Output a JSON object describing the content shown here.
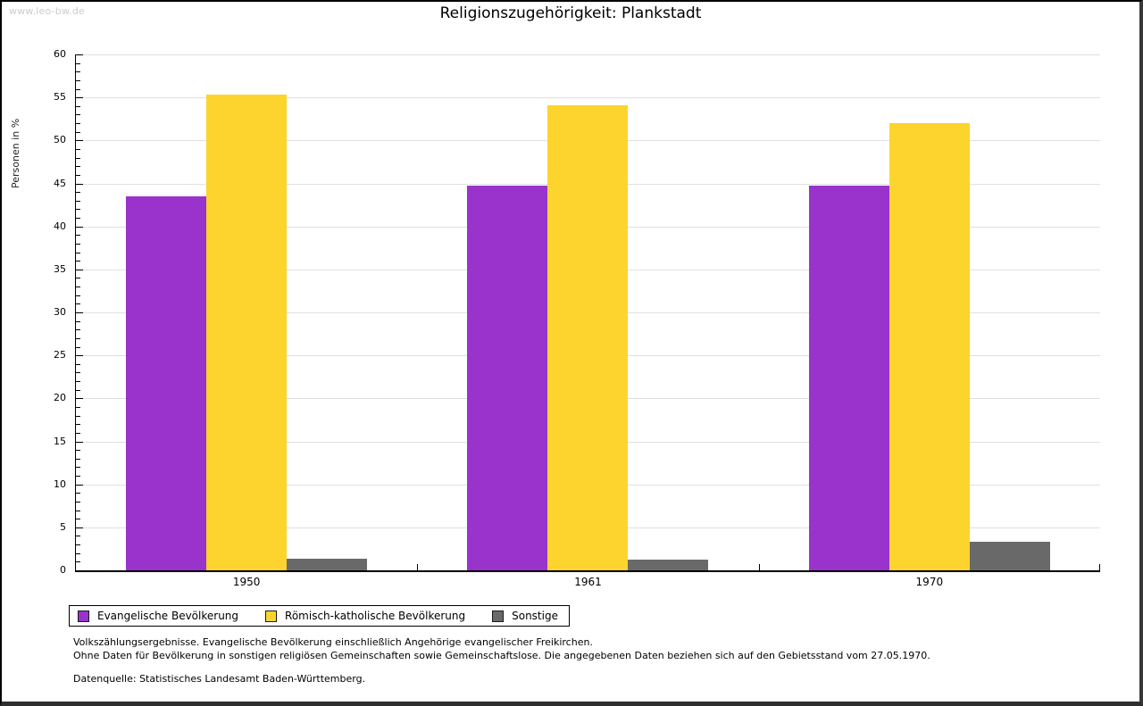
{
  "watermark": "www.leo-bw.de",
  "header": {
    "title": "Religionszugehörigkeit: Plankstadt"
  },
  "chart_data": {
    "type": "bar",
    "title": "Religionszugehörigkeit: Plankstadt",
    "xlabel": "",
    "ylabel": "Personen in %",
    "ylim": [
      0,
      60
    ],
    "ytick_step": 5,
    "minor_tick_step": 1,
    "yticks": [
      0,
      5,
      10,
      15,
      20,
      25,
      30,
      35,
      40,
      45,
      50,
      55,
      60
    ],
    "grid": true,
    "legend_position": "bottom-left",
    "categories": [
      "1950",
      "1961",
      "1970"
    ],
    "series": [
      {
        "name": "Evangelische Bevölkerung",
        "color": "#9933cc",
        "values": [
          43.5,
          44.7,
          44.7
        ]
      },
      {
        "name": "Römisch-katholische Bevölkerung",
        "color": "#fcd42d",
        "values": [
          55.3,
          54.1,
          52.0
        ]
      },
      {
        "name": "Sonstige",
        "color": "#696969",
        "values": [
          1.3,
          1.2,
          3.3
        ]
      }
    ],
    "colors": {
      "gridline": "#e0e0e0",
      "axis": "#000000"
    }
  },
  "footnotes": {
    "line1": "Volkszählungsergebnisse. Evangelische Bevölkerung einschließlich Angehörige evangelischer Freikirchen.",
    "line2": "Ohne Daten für Bevölkerung in sonstigen religiösen Gemeinschaften sowie Gemeinschaftslose. Die angegebenen Daten beziehen sich auf den Gebietsstand vom 27.05.1970.",
    "source": "Datenquelle: Statistisches Landesamt Baden-Württemberg."
  }
}
